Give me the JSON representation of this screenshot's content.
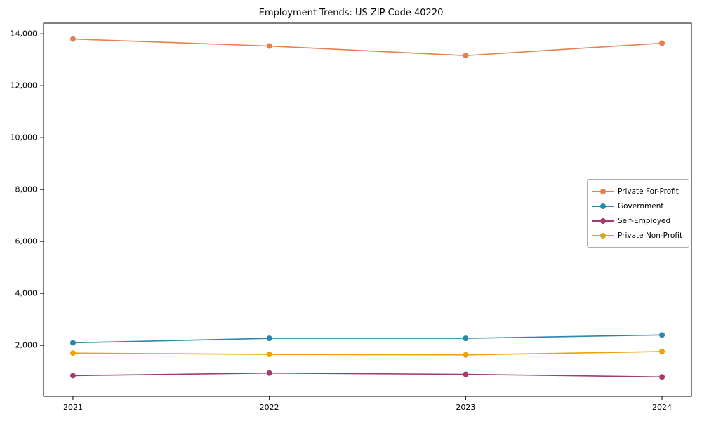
{
  "chart_data": {
    "type": "line",
    "title": "Employment Trends: US ZIP Code 40220",
    "xlabel": "",
    "ylabel": "",
    "x": [
      2021,
      2022,
      2023,
      2024
    ],
    "xlim": [
      2020.85,
      2024.15
    ],
    "ylim": [
      30,
      14410
    ],
    "yticks": [
      2000,
      4000,
      6000,
      8000,
      10000,
      12000,
      14000
    ],
    "grid": false,
    "legend_position": "center-right",
    "marker": "circle",
    "series": [
      {
        "name": "Private For-Profit",
        "color": "#e8804d",
        "values": [
          13800,
          13530,
          13160,
          13640
        ]
      },
      {
        "name": "Government",
        "color": "#2e86ab",
        "values": [
          2100,
          2270,
          2270,
          2400
        ]
      },
      {
        "name": "Self-Employed",
        "color": "#a23b72",
        "values": [
          830,
          930,
          880,
          780
        ]
      },
      {
        "name": "Private Non-Profit",
        "color": "#efa00b",
        "values": [
          1700,
          1650,
          1630,
          1760
        ]
      }
    ]
  }
}
